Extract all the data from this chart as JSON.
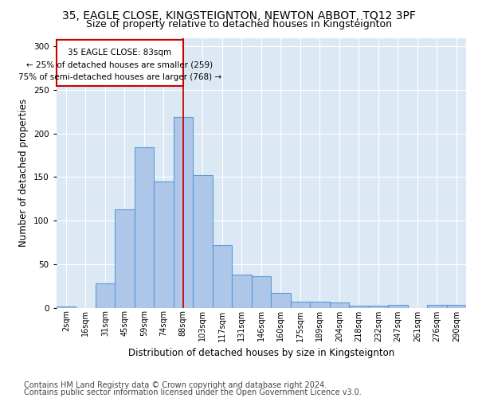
{
  "title1": "35, EAGLE CLOSE, KINGSTEIGNTON, NEWTON ABBOT, TQ12 3PF",
  "title2": "Size of property relative to detached houses in Kingsteignton",
  "xlabel": "Distribution of detached houses by size in Kingsteignton",
  "ylabel": "Number of detached properties",
  "footer1": "Contains HM Land Registry data © Crown copyright and database right 2024.",
  "footer2": "Contains public sector information licensed under the Open Government Licence v3.0.",
  "categories": [
    "2sqm",
    "16sqm",
    "31sqm",
    "45sqm",
    "59sqm",
    "74sqm",
    "88sqm",
    "103sqm",
    "117sqm",
    "131sqm",
    "146sqm",
    "160sqm",
    "175sqm",
    "189sqm",
    "204sqm",
    "218sqm",
    "232sqm",
    "247sqm",
    "261sqm",
    "276sqm",
    "290sqm"
  ],
  "values": [
    1,
    0,
    28,
    113,
    184,
    145,
    219,
    152,
    72,
    38,
    36,
    17,
    7,
    7,
    6,
    2,
    2,
    3,
    0,
    3,
    3
  ],
  "bar_color": "#aec6e8",
  "bar_edge_color": "#5b9bd5",
  "annot_line1": "35 EAGLE CLOSE: 83sqm",
  "annot_line2": "← 25% of detached houses are smaller (259)",
  "annot_line3": "75% of semi-detached houses are larger (768) →",
  "annotation_box_edge": "#cc0000",
  "vline_bin": 6,
  "vline_color": "#cc0000",
  "ylim": [
    0,
    310
  ],
  "yticks": [
    0,
    50,
    100,
    150,
    200,
    250,
    300
  ],
  "bg_color": "#dce9f5",
  "grid_color": "#ffffff",
  "title1_fontsize": 10,
  "title2_fontsize": 9,
  "xlabel_fontsize": 8.5,
  "ylabel_fontsize": 8.5,
  "footer_fontsize": 7,
  "annot_fontsize": 7.5
}
